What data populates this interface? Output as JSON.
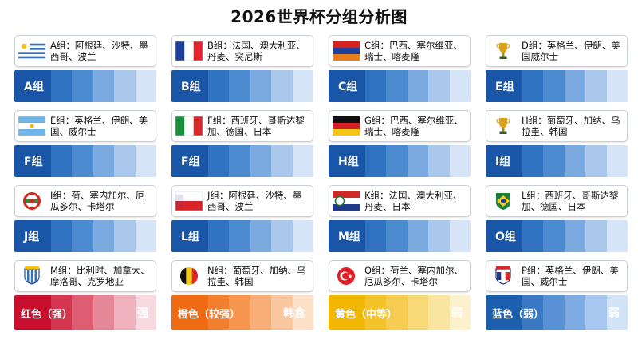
{
  "title": "2026世界杯分组分析图",
  "colors": {
    "blue_ramp": [
      "#1a56a8",
      "#2f72c0",
      "#4c8bd0",
      "#7aaadf",
      "#a9c8ec",
      "#d5e4f6"
    ],
    "red_ramp": [
      "#c8102e",
      "#d63550",
      "#de5d73",
      "#e78898",
      "#efb2be",
      "#f7d9df"
    ],
    "orange_ramp": [
      "#f06a12",
      "#f37e2e",
      "#f6964f",
      "#f8ae76",
      "#fac79f",
      "#fde0c8"
    ],
    "yellow_ramp": [
      "#f2b705",
      "#f4c22b",
      "#f6cd51",
      "#f8d978",
      "#fae59f",
      "#fdf1cb"
    ],
    "legend_blue_ramp": [
      "#1c5fae",
      "#3a78c4",
      "#5891d4",
      "#7eace2",
      "#a8c7ee",
      "#d3e3f7"
    ]
  },
  "groups": [
    {
      "flag": "uruguay-flag-icon",
      "text": "A组：阿根廷、沙特、墨西哥、波兰",
      "bar_label": "A组"
    },
    {
      "flag": "france-flag-icon",
      "text": "B组：法国、澳大利亚、丹麦、突尼斯",
      "bar_label": "B组"
    },
    {
      "flag": "armenia-flag-icon",
      "text": "C组：巴西、塞尔维亚、瑞士、喀麦隆",
      "bar_label": "C组"
    },
    {
      "flag": "trophy-icon",
      "text": "D组：英格兰、伊朗、美国威尔士",
      "bar_label": "E组"
    },
    {
      "flag": "argentina-flag-icon",
      "text": "E组：英格兰、伊朗、美国、威尔士",
      "bar_label": "F组"
    },
    {
      "flag": "italy-flag-icon",
      "text": "F组：西班牙、哥斯达黎加、德国、日本",
      "bar_label": "F组"
    },
    {
      "flag": "germany-flag-icon",
      "text": "G组：巴西、塞尔维亚、瑞士、喀麦隆",
      "bar_label": "H组"
    },
    {
      "flag": "trophy-icon",
      "text": "H组：葡萄牙、加纳、乌拉圭、韩国",
      "bar_label": "I组"
    },
    {
      "flag": "emblem-flag-icon",
      "text": "I组：荷、塞内加尔、厄瓜多尔、卡塔尔",
      "bar_label": "J组"
    },
    {
      "flag": "red-white-flag-icon",
      "text": "J组：阿根廷、沙特、墨西哥、波兰",
      "bar_label": "L组"
    },
    {
      "flag": "emblem-stripe-flag-icon",
      "text": "K组：法国、澳大利亚、丹麦、日本",
      "bar_label": "M组"
    },
    {
      "flag": "brazil-crest-icon",
      "text": "L组：西班牙、哥斯达黎加、德国、日本",
      "bar_label": "O组"
    },
    {
      "flag": "club-crest-icon",
      "text": "M组：比利时、加拿大、摩洛哥、克罗地亚",
      "bar_label": ""
    },
    {
      "flag": "belgium-flag-icon",
      "text": "N组：葡萄牙、加纳、乌拉圭、韩国",
      "bar_label": ""
    },
    {
      "flag": "turkey-flag-icon",
      "text": "O组：荷兰、塞内加尔、厄瓜多尔、卡塔尔",
      "bar_label": ""
    },
    {
      "flag": "france-crest-icon",
      "text": "P组：英格兰、伊朗、美国、威尔士",
      "bar_label": ""
    }
  ],
  "legend": [
    {
      "label": "红色（强）",
      "right": "强",
      "ramp": "red_ramp"
    },
    {
      "label": "橙色（较强）",
      "right": "韩盒",
      "ramp": "orange_ramp"
    },
    {
      "label": "黄色（中等）",
      "right": "弱",
      "ramp": "yellow_ramp"
    },
    {
      "label": "蓝色（弱）",
      "right": "弱",
      "ramp": "legend_blue_ramp"
    }
  ]
}
